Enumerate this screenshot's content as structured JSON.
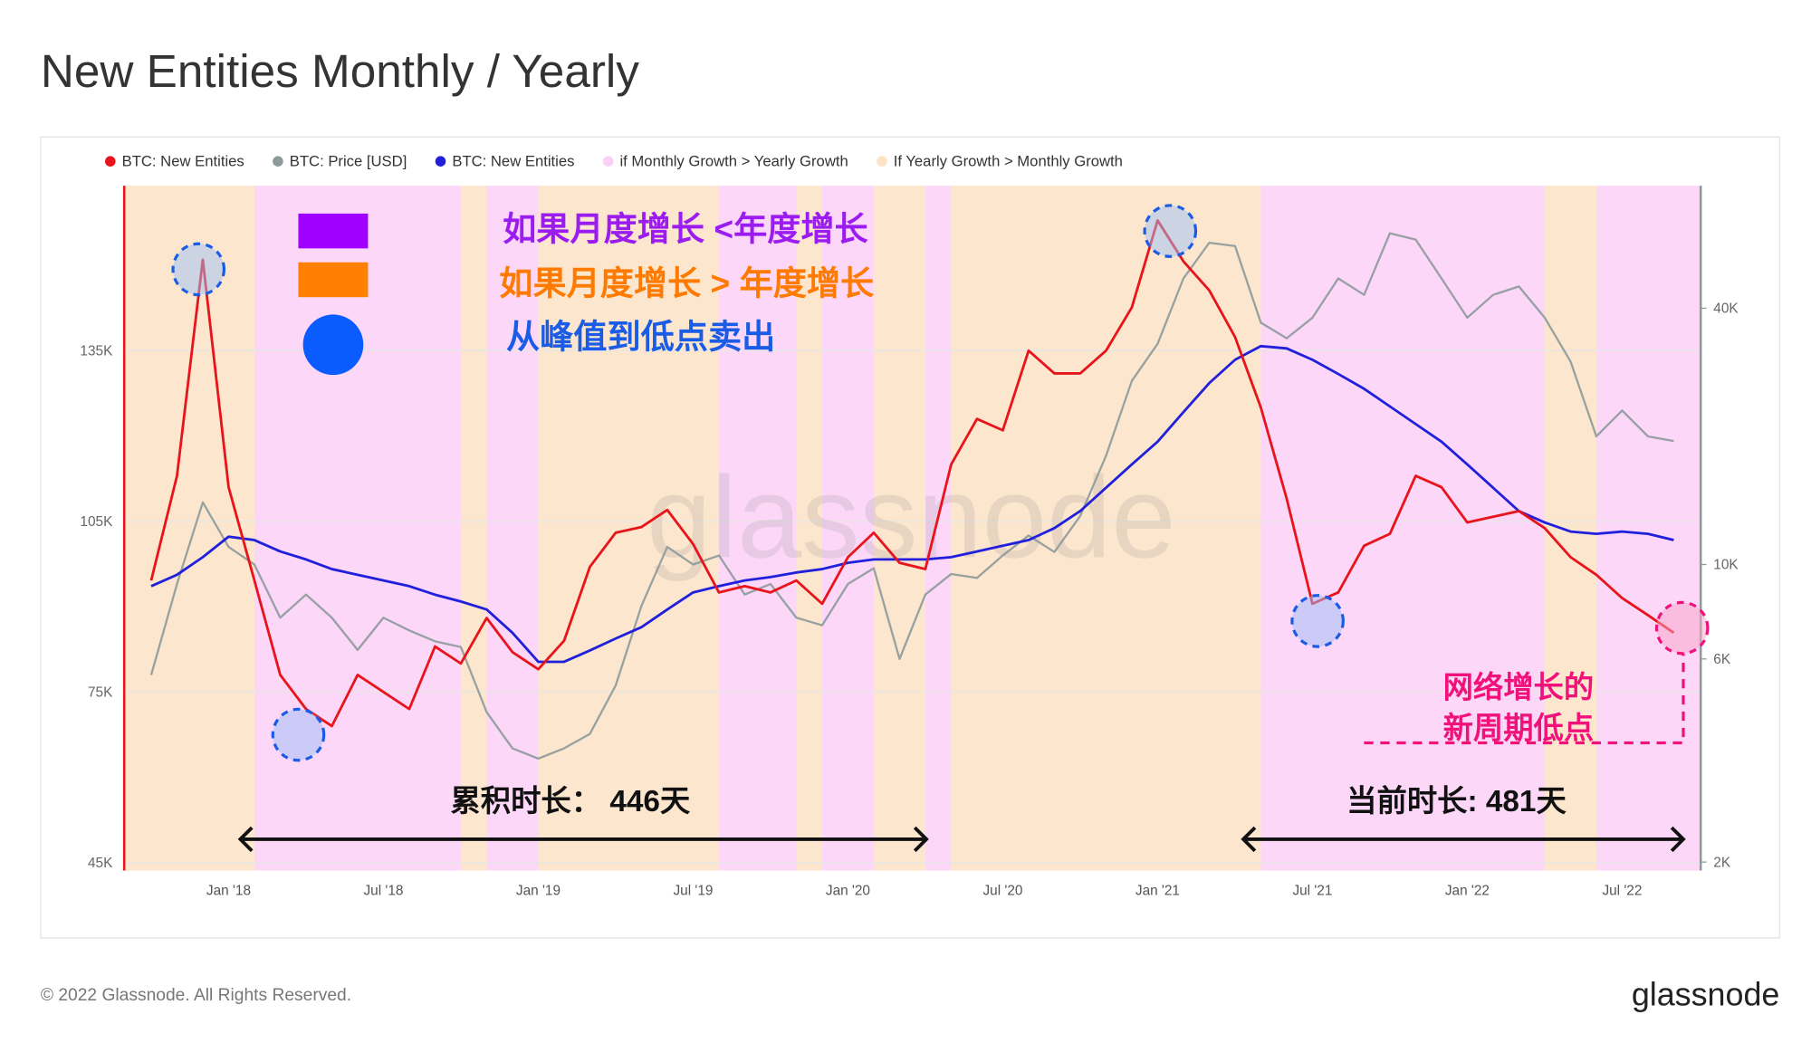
{
  "chart_data": {
    "type": "line",
    "title": "New Entities Monthly / Yearly",
    "x": [
      "2017-10",
      "2017-11",
      "2017-12",
      "2018-01",
      "2018-02",
      "2018-03",
      "2018-04",
      "2018-05",
      "2018-06",
      "2018-07",
      "2018-08",
      "2018-09",
      "2018-10",
      "2018-11",
      "2018-12",
      "2019-01",
      "2019-02",
      "2019-03",
      "2019-04",
      "2019-05",
      "2019-06",
      "2019-07",
      "2019-08",
      "2019-09",
      "2019-10",
      "2019-11",
      "2019-12",
      "2020-01",
      "2020-02",
      "2020-03",
      "2020-04",
      "2020-05",
      "2020-06",
      "2020-07",
      "2020-08",
      "2020-09",
      "2020-10",
      "2020-11",
      "2020-12",
      "2021-01",
      "2021-02",
      "2021-03",
      "2021-04",
      "2021-05",
      "2021-06",
      "2021-07",
      "2021-08",
      "2021-09",
      "2021-10",
      "2021-11",
      "2021-12",
      "2022-01",
      "2022-02",
      "2022-03",
      "2022-04",
      "2022-05",
      "2022-06",
      "2022-07",
      "2022-08",
      "2022-09"
    ],
    "series": [
      {
        "name": "BTC: New Entities",
        "color": "#e8141b",
        "axis": "y",
        "values": [
          94600,
          113000,
          151000,
          111000,
          94600,
          78000,
          72000,
          69000,
          78000,
          75000,
          72000,
          83000,
          80000,
          88000,
          82000,
          79000,
          84000,
          97000,
          103000,
          104000,
          107000,
          101000,
          92500,
          93600,
          92500,
          94600,
          90500,
          98700,
          103000,
          97700,
          96600,
          115000,
          123000,
          121000,
          135000,
          131000,
          131000,
          135000,
          142600,
          157900,
          150700,
          145600,
          137400,
          125000,
          109000,
          90500,
          92500,
          100700,
          102800,
          113000,
          111000,
          104800,
          105800,
          106800,
          103800,
          98700,
          95600,
          91500,
          88500,
          85400
        ]
      },
      {
        "name": "BTC: Price [USD]",
        "color": "#8c9a9a",
        "axis": "y2",
        "values": [
          5500,
          9000,
          14000,
          11000,
          10000,
          7500,
          8500,
          7500,
          6300,
          7500,
          7000,
          6600,
          6400,
          4500,
          3700,
          3500,
          3700,
          4000,
          5200,
          8000,
          11000,
          10000,
          10500,
          8500,
          9000,
          7500,
          7200,
          9000,
          9800,
          6000,
          8500,
          9500,
          9300,
          10500,
          11700,
          10700,
          13000,
          18000,
          27000,
          33000,
          47000,
          57000,
          56000,
          37000,
          34000,
          38000,
          47000,
          43000,
          60000,
          58000,
          47000,
          38000,
          43000,
          45000,
          38000,
          30000,
          20000,
          23000,
          20000,
          19500
        ]
      },
      {
        "name": "BTC: New Entities",
        "color": "#2020dc",
        "axis": "y",
        "values": [
          93600,
          95600,
          98700,
          102300,
          101700,
          99700,
          98300,
          96600,
          95600,
          94600,
          93600,
          92100,
          90900,
          89500,
          85400,
          80300,
          80300,
          82300,
          84400,
          86400,
          89500,
          92500,
          93600,
          94600,
          95200,
          96000,
          96600,
          97700,
          98300,
          98300,
          98300,
          98700,
          99700,
          100700,
          101700,
          103800,
          106800,
          110900,
          115000,
          119000,
          124200,
          129300,
          133400,
          135800,
          135400,
          133400,
          130900,
          128300,
          125200,
          122100,
          119000,
          115000,
          110900,
          106800,
          104800,
          103200,
          102800,
          103200,
          102800,
          101700
        ]
      },
      {
        "name": "if Monthly Growth > Yearly Growth",
        "color": "#fbd0f7",
        "ranges": [
          [
            "2018-02",
            "2018-10"
          ],
          [
            "2018-11",
            "2019-01"
          ],
          [
            "2019-08",
            "2019-11"
          ],
          [
            "2019-12",
            "2020-02"
          ],
          [
            "2020-04",
            "2020-05"
          ],
          [
            "2021-05",
            "2022-04"
          ],
          [
            "2022-06",
            "2022-10"
          ]
        ]
      },
      {
        "name": "If Yearly Growth > Monthly Growth",
        "color": "#fde2c6",
        "ranges": [
          [
            "2017-09",
            "2018-02"
          ],
          [
            "2018-10",
            "2018-11"
          ],
          [
            "2019-01",
            "2019-08"
          ],
          [
            "2019-11",
            "2019-12"
          ],
          [
            "2020-02",
            "2020-04"
          ],
          [
            "2020-05",
            "2021-05"
          ],
          [
            "2022-04",
            "2022-06"
          ]
        ]
      }
    ],
    "xlim": [
      "2017-09",
      "2022-10"
    ],
    "xticks": [
      {
        "value": "2018-01",
        "label": "Jan '18"
      },
      {
        "value": "2018-07",
        "label": "Jul '18"
      },
      {
        "value": "2019-01",
        "label": "Jan '19"
      },
      {
        "value": "2019-07",
        "label": "Jul '19"
      },
      {
        "value": "2020-01",
        "label": "Jan '20"
      },
      {
        "value": "2020-07",
        "label": "Jul '20"
      },
      {
        "value": "2021-01",
        "label": "Jan '21"
      },
      {
        "value": "2021-07",
        "label": "Jul '21"
      },
      {
        "value": "2022-01",
        "label": "Jan '22"
      },
      {
        "value": "2022-07",
        "label": "Jul '22"
      }
    ],
    "ylim": [
      43600,
      164000
    ],
    "yticks": [
      {
        "value": 45000,
        "label": "45K"
      },
      {
        "value": 75000,
        "label": "75K"
      },
      {
        "value": 105000,
        "label": "105K"
      },
      {
        "value": 135000,
        "label": "135K"
      }
    ],
    "y2lim": [
      1910,
      77600
    ],
    "y2log": true,
    "y2ticks": [
      {
        "value": 2000,
        "label": "2K"
      },
      {
        "value": 6000,
        "label": "6K"
      },
      {
        "value": 10000,
        "label": "10K"
      },
      {
        "value": 40000,
        "label": "40K"
      }
    ],
    "grid": true,
    "legend": "top-left",
    "annotations": {
      "key_lower": "如果月度增长 <年度增长",
      "key_higher": "如果月度增长 > 年度增长",
      "key_sell": "从峰值到低点卖出",
      "cumulative": "累积时长： 446天",
      "current": "当前时长: 481天",
      "low_1": "网络增长的",
      "low_2": "新周期低点"
    },
    "watermark": "glassnode"
  },
  "footer": {
    "copyright": "© 2022 Glassnode. All Rights Reserved.",
    "logo": "glassnode"
  }
}
